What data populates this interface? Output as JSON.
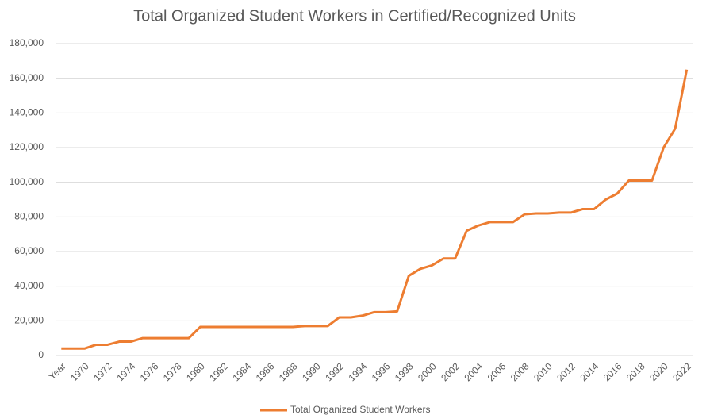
{
  "chart_data": {
    "type": "line",
    "title": "Total Organized Student Workers in Certified/Recognized Units",
    "categories": [
      "Year",
      null,
      "1970",
      null,
      "1972",
      null,
      "1974",
      null,
      "1976",
      null,
      "1978",
      null,
      "1980",
      null,
      "1982",
      null,
      "1984",
      null,
      "1986",
      null,
      "1988",
      null,
      "1990",
      null,
      "1992",
      null,
      "1994",
      null,
      "1996",
      null,
      "1998",
      null,
      "2000",
      null,
      "2002",
      null,
      "2004",
      null,
      "2006",
      null,
      "2008",
      null,
      "2010",
      null,
      "2012",
      null,
      "2014",
      null,
      "2016",
      null,
      "2018",
      null,
      "2020",
      null,
      "2022"
    ],
    "series": [
      {
        "name": "Total Organized Student Workers",
        "color": "#ed7d31",
        "values": [
          4000,
          4000,
          4000,
          6200,
          6200,
          8000,
          8000,
          10000,
          10000,
          10000,
          10000,
          10000,
          16500,
          16500,
          16500,
          16500,
          16500,
          16500,
          16500,
          16500,
          16500,
          17000,
          17000,
          17000,
          22000,
          22000,
          23000,
          25000,
          25000,
          25500,
          46000,
          50000,
          52000,
          56000,
          56000,
          72000,
          75000,
          77000,
          77000,
          77000,
          81500,
          82000,
          82000,
          82500,
          82500,
          84500,
          84500,
          90000,
          93500,
          101000,
          101000,
          101000,
          120000,
          131000,
          165000
        ]
      }
    ],
    "ylim": [
      0,
      180000
    ],
    "yticks": [
      0,
      {
        "value": 20000,
        "label": "20,000"
      },
      {
        "value": 40000,
        "label": "40,000"
      },
      {
        "value": 60000,
        "label": "60,000"
      },
      {
        "value": 80000,
        "label": "80,000"
      },
      {
        "value": 100000,
        "label": "100,000"
      },
      {
        "value": 120000,
        "label": "120,000"
      },
      {
        "value": 140000,
        "label": "140,000"
      },
      {
        "value": 160000,
        "label": "160,000"
      },
      {
        "value": 180000,
        "label": "180,000"
      }
    ],
    "grid": true,
    "legend": "bottom"
  }
}
